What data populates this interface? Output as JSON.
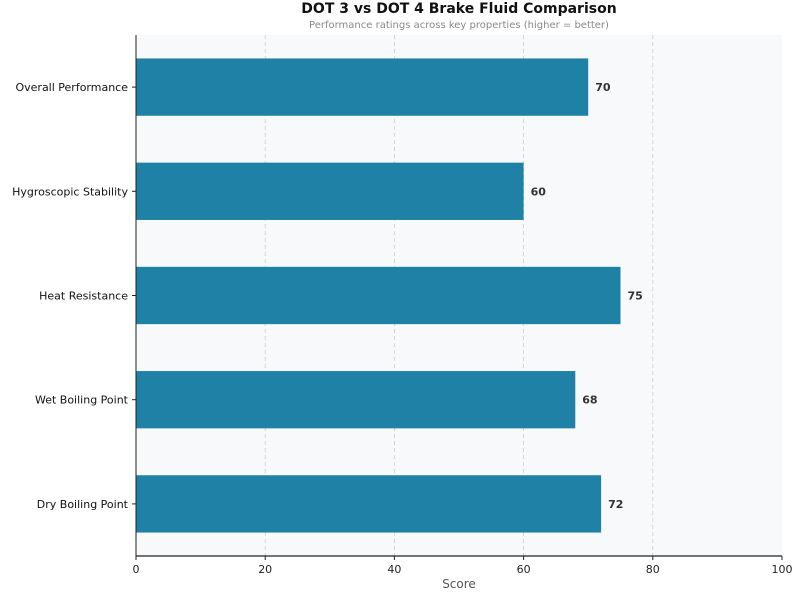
{
  "chart_data": {
    "type": "bar",
    "orientation": "horizontal",
    "title": "DOT 3 vs DOT 4 Brake Fluid Comparison",
    "subtitle": "Performance ratings across key properties (higher = better)",
    "xlabel": "Score",
    "ylabel": "",
    "xlim": [
      0,
      100
    ],
    "xticks": [
      0,
      20,
      40,
      60,
      80,
      100
    ],
    "grid": "x dashed",
    "categories": [
      "Overall Performance",
      "Hygroscopic Stability",
      "Heat Resistance",
      "Wet Boiling Point",
      "Dry Boiling Point"
    ],
    "values": [
      70,
      60,
      75,
      68,
      72
    ],
    "bar_color": "#1f81a6",
    "background_color": "#f8f9fb"
  }
}
